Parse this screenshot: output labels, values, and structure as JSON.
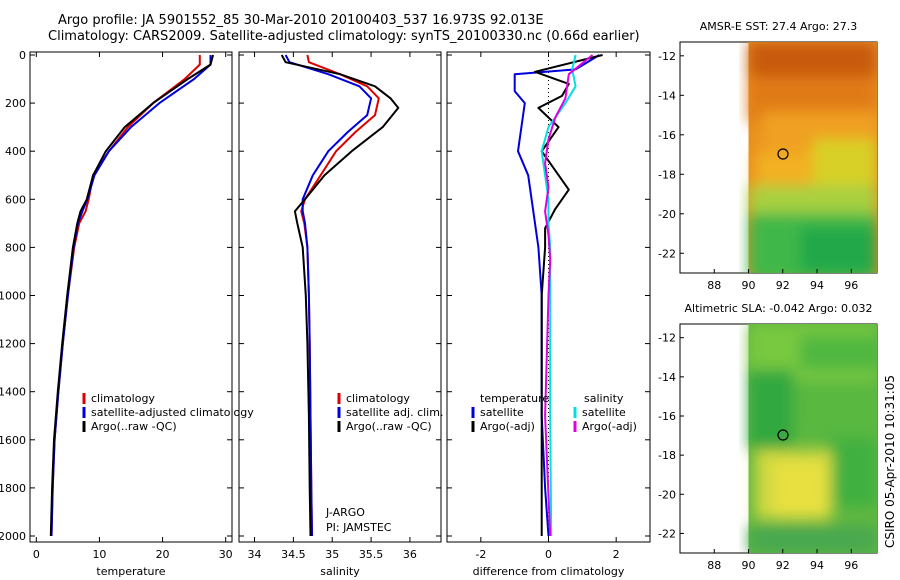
{
  "header": {
    "title_line1": "Argo profile: JA 5901552_85 30-Mar-2010 20100403_537 16.973S 92.013E",
    "title_line2": "Climatology: CARS2009. Satellite-adjusted climatology: synTS_20100330.nc (0.66d earlier)",
    "stamp": "CSIRO 05-Apr-2010 10:31:05"
  },
  "colors": {
    "climatology": "#dd0000",
    "satellite": "#0000dd",
    "argo": "#000000",
    "cyan": "#00e0e0",
    "magenta": "#e000e0"
  },
  "chart_data": [
    {
      "type": "line",
      "panel": "temperature",
      "xlabel": "temperature",
      "xlim": [
        -1,
        31
      ],
      "ylim": [
        2050,
        0
      ],
      "xticks": [
        0,
        10,
        20,
        30
      ],
      "yticks": [
        0,
        200,
        400,
        600,
        800,
        1000,
        1200,
        1400,
        1600,
        1800,
        2000
      ],
      "legend": [
        "climatology",
        "satellite-adjusted climatology",
        "Argo(..raw -QC)"
      ],
      "series": [
        {
          "name": "climatology",
          "color": "#dd0000",
          "x": [
            25.9,
            25.9,
            23.5,
            18.5,
            14.5,
            11.5,
            9.0,
            8.3,
            7.8,
            6.8,
            6.0,
            5.0,
            4.2,
            3.5,
            2.9,
            2.6,
            2.4
          ],
          "y": [
            0,
            40,
            100,
            200,
            300,
            400,
            500,
            600,
            650,
            700,
            800,
            1000,
            1200,
            1400,
            1600,
            1800,
            2000
          ]
        },
        {
          "name": "satellite-adjusted climatology",
          "color": "#0000dd",
          "x": [
            27.6,
            27.6,
            25.0,
            19.5,
            15.0,
            11.5,
            9.2,
            8.1,
            7.3,
            6.6,
            5.9,
            5.0,
            4.2,
            3.5,
            2.9,
            2.6,
            2.4
          ],
          "y": [
            0,
            40,
            100,
            200,
            300,
            400,
            500,
            600,
            650,
            700,
            800,
            1000,
            1200,
            1400,
            1600,
            1800,
            2000
          ]
        },
        {
          "name": "Argo(..raw -QC)",
          "color": "#000000",
          "x": [
            28.0,
            27.6,
            24.0,
            18.5,
            14.0,
            11.0,
            9.0,
            8.0,
            7.0,
            6.5,
            5.8,
            4.9,
            4.1,
            3.4,
            2.8,
            2.5,
            2.3
          ],
          "y": [
            0,
            40,
            100,
            200,
            300,
            400,
            500,
            600,
            650,
            700,
            800,
            1000,
            1200,
            1400,
            1600,
            1800,
            2000
          ]
        }
      ]
    },
    {
      "type": "line",
      "panel": "salinity",
      "xlabel": "salinity",
      "xlim": [
        33.8,
        36.4
      ],
      "ylim": [
        2050,
        0
      ],
      "xticks": [
        34,
        34.5,
        35,
        35.5,
        36
      ],
      "legend": [
        "climatology",
        "satellite adj. clim.",
        "Argo(..raw -QC)"
      ],
      "annotations": [
        "J-ARGO",
        "PI: JAMSTEC"
      ],
      "series": [
        {
          "name": "climatology",
          "color": "#dd0000",
          "x": [
            34.68,
            34.7,
            35.1,
            35.45,
            35.6,
            35.55,
            35.3,
            35.05,
            34.85,
            34.65,
            34.6,
            34.64,
            34.68,
            34.7,
            34.71,
            34.72,
            34.73,
            34.74
          ],
          "y": [
            0,
            30,
            80,
            130,
            180,
            250,
            320,
            400,
            500,
            600,
            650,
            700,
            800,
            1000,
            1200,
            1500,
            1800,
            2000
          ]
        },
        {
          "name": "satellite adj. clim.",
          "color": "#0000dd",
          "x": [
            34.4,
            34.45,
            34.95,
            35.35,
            35.5,
            35.45,
            35.2,
            34.95,
            34.75,
            34.62,
            34.62,
            34.65,
            34.68,
            34.7,
            34.71,
            34.72,
            34.73,
            34.74
          ],
          "y": [
            0,
            30,
            80,
            130,
            180,
            250,
            320,
            400,
            500,
            600,
            650,
            700,
            800,
            1000,
            1200,
            1500,
            1800,
            2000
          ]
        },
        {
          "name": "Argo(..raw -QC)",
          "color": "#000000",
          "x": [
            34.35,
            34.4,
            35.1,
            35.55,
            35.75,
            35.85,
            35.65,
            35.25,
            34.9,
            34.65,
            34.52,
            34.55,
            34.62,
            34.66,
            34.68,
            34.7,
            34.71,
            34.72
          ],
          "y": [
            0,
            30,
            80,
            130,
            180,
            220,
            300,
            400,
            500,
            600,
            650,
            700,
            800,
            1000,
            1200,
            1500,
            1800,
            2000
          ]
        }
      ]
    },
    {
      "type": "line",
      "panel": "difference",
      "xlabel": "difference from climatology",
      "xlim": [
        -3,
        3
      ],
      "ylim": [
        2050,
        0
      ],
      "xticks": [
        -2,
        0,
        2
      ],
      "legend_temperature_title": "temperature",
      "legend_salinity_title": "salinity",
      "legend": [
        "satellite",
        "Argo(-adj)",
        "satellite",
        "Argo(-adj)"
      ],
      "series": [
        {
          "name": "temperature satellite",
          "color": "#0000dd",
          "x": [
            1.5,
            0.8,
            -1.0,
            -1.0,
            -0.7,
            -0.8,
            -0.9,
            -0.6,
            -0.5,
            -0.4,
            -0.3,
            -0.2,
            -0.2,
            -0.2,
            -0.1,
            0.0
          ],
          "y": [
            0,
            60,
            80,
            150,
            200,
            300,
            400,
            500,
            600,
            700,
            800,
            1000,
            1200,
            1500,
            1800,
            2000
          ]
        },
        {
          "name": "temperature Argo(-adj)",
          "color": "#000000",
          "x": [
            1.6,
            -0.4,
            0.6,
            0.4,
            -0.3,
            0.3,
            -0.2,
            0.6,
            0.2,
            -0.1,
            -0.1,
            -0.2,
            -0.2,
            -0.2,
            -0.2,
            -0.2
          ],
          "y": [
            0,
            70,
            120,
            170,
            220,
            300,
            400,
            560,
            640,
            720,
            800,
            1000,
            1200,
            1500,
            1800,
            2000
          ]
        },
        {
          "name": "salinity satellite",
          "color": "#00e0e0",
          "x": [
            0.8,
            0.7,
            0.8,
            0.5,
            0.0,
            -0.2,
            -0.1,
            0.0,
            0.0,
            0.05,
            0.05,
            0.05,
            0.08
          ],
          "y": [
            0,
            60,
            130,
            200,
            300,
            400,
            500,
            600,
            700,
            800,
            1000,
            1500,
            2000
          ]
        },
        {
          "name": "salinity Argo(-adj)",
          "color": "#e000e0",
          "x": [
            1.3,
            0.6,
            0.5,
            0.2,
            0.0,
            -0.1,
            0.0,
            -0.1,
            0.0,
            0.05,
            0.0,
            -0.1,
            0.05
          ],
          "y": [
            0,
            80,
            180,
            260,
            350,
            450,
            550,
            650,
            750,
            850,
            1000,
            1500,
            2000
          ]
        }
      ]
    },
    {
      "type": "heatmap",
      "panel": "amsre_sst",
      "title": "AMSR-E SST: 27.4 Argo: 27.3",
      "xlim": [
        86,
        97.5
      ],
      "ylim": [
        -23,
        -11.3
      ],
      "xticks": [
        88,
        90,
        92,
        94,
        96
      ],
      "yticks": [
        -12,
        -14,
        -16,
        -18,
        -20,
        -22
      ],
      "marker": {
        "lon": 92.013,
        "lat": -16.973
      }
    },
    {
      "type": "heatmap",
      "panel": "altimetric_sla",
      "title": "Altimetric SLA: -0.042 Argo: 0.032",
      "xlim": [
        86,
        97.5
      ],
      "ylim": [
        -23,
        -11.3
      ],
      "xticks": [
        88,
        90,
        92,
        94,
        96
      ],
      "yticks": [
        -12,
        -14,
        -16,
        -18,
        -20,
        -22
      ],
      "marker": {
        "lon": 92.013,
        "lat": -16.973
      }
    }
  ]
}
